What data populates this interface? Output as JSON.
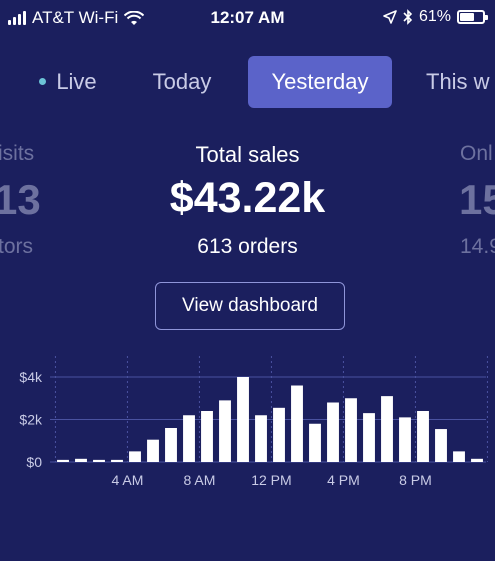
{
  "status_bar": {
    "carrier": "AT&T Wi-Fi",
    "time": "12:07 AM",
    "battery": "61%"
  },
  "tabs": [
    {
      "label": "Live"
    },
    {
      "label": "Today"
    },
    {
      "label": "Yesterday"
    },
    {
      "label": "This w"
    }
  ],
  "metrics": {
    "left": {
      "label": "isits",
      "value": "13",
      "sub": "tors"
    },
    "center": {
      "label": "Total sales",
      "value": "$43.22k",
      "sub": "613 orders"
    },
    "right": {
      "label": "Onl",
      "value": "15",
      "sub": "14.9"
    }
  },
  "view_dashboard_label": "View dashboard",
  "chart_data": {
    "type": "bar",
    "y_ticks": [
      "$4k",
      "$2k",
      "$0"
    ],
    "x_ticks": [
      "4 AM",
      "8 AM",
      "12 PM",
      "4 PM",
      "8 PM"
    ],
    "ylim": [
      0,
      4000
    ],
    "grid": true,
    "values": [
      100,
      150,
      100,
      100,
      500,
      1050,
      1600,
      2200,
      2400,
      2900,
      4000,
      2200,
      2550,
      3600,
      1800,
      2800,
      3000,
      2300,
      3100,
      2100,
      2400,
      1550,
      500,
      150
    ],
    "colors": {
      "bar": "#ffffff",
      "grid": "#4a52a0",
      "tick": "#c9cbe6"
    }
  }
}
